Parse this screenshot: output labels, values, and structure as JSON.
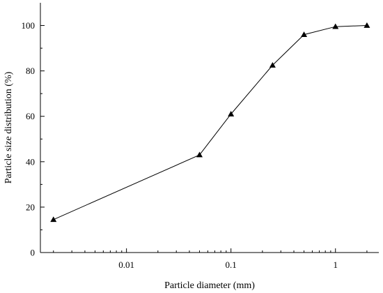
{
  "chart_data": {
    "type": "line",
    "xlabel": "Particle diameter (mm)",
    "ylabel": "Particle size distribution (%)",
    "xscale": "log",
    "xlim": [
      0.0015,
      2.6
    ],
    "ylim": [
      0,
      110
    ],
    "x_ticks": [
      0.01,
      0.1,
      1
    ],
    "x_tick_labels": [
      "0.01",
      "0.1",
      "1"
    ],
    "y_ticks": [
      0,
      20,
      40,
      60,
      80,
      100
    ],
    "y_tick_labels": [
      "0",
      "20",
      "40",
      "60",
      "80",
      "100"
    ],
    "grid": false,
    "series": [
      {
        "marker": "triangle",
        "color": "#000000",
        "x": [
          0.002,
          0.05,
          0.1,
          0.25,
          0.5,
          1,
          2
        ],
        "y": [
          14.5,
          43,
          61,
          82.5,
          96,
          99.5,
          100
        ]
      }
    ]
  }
}
